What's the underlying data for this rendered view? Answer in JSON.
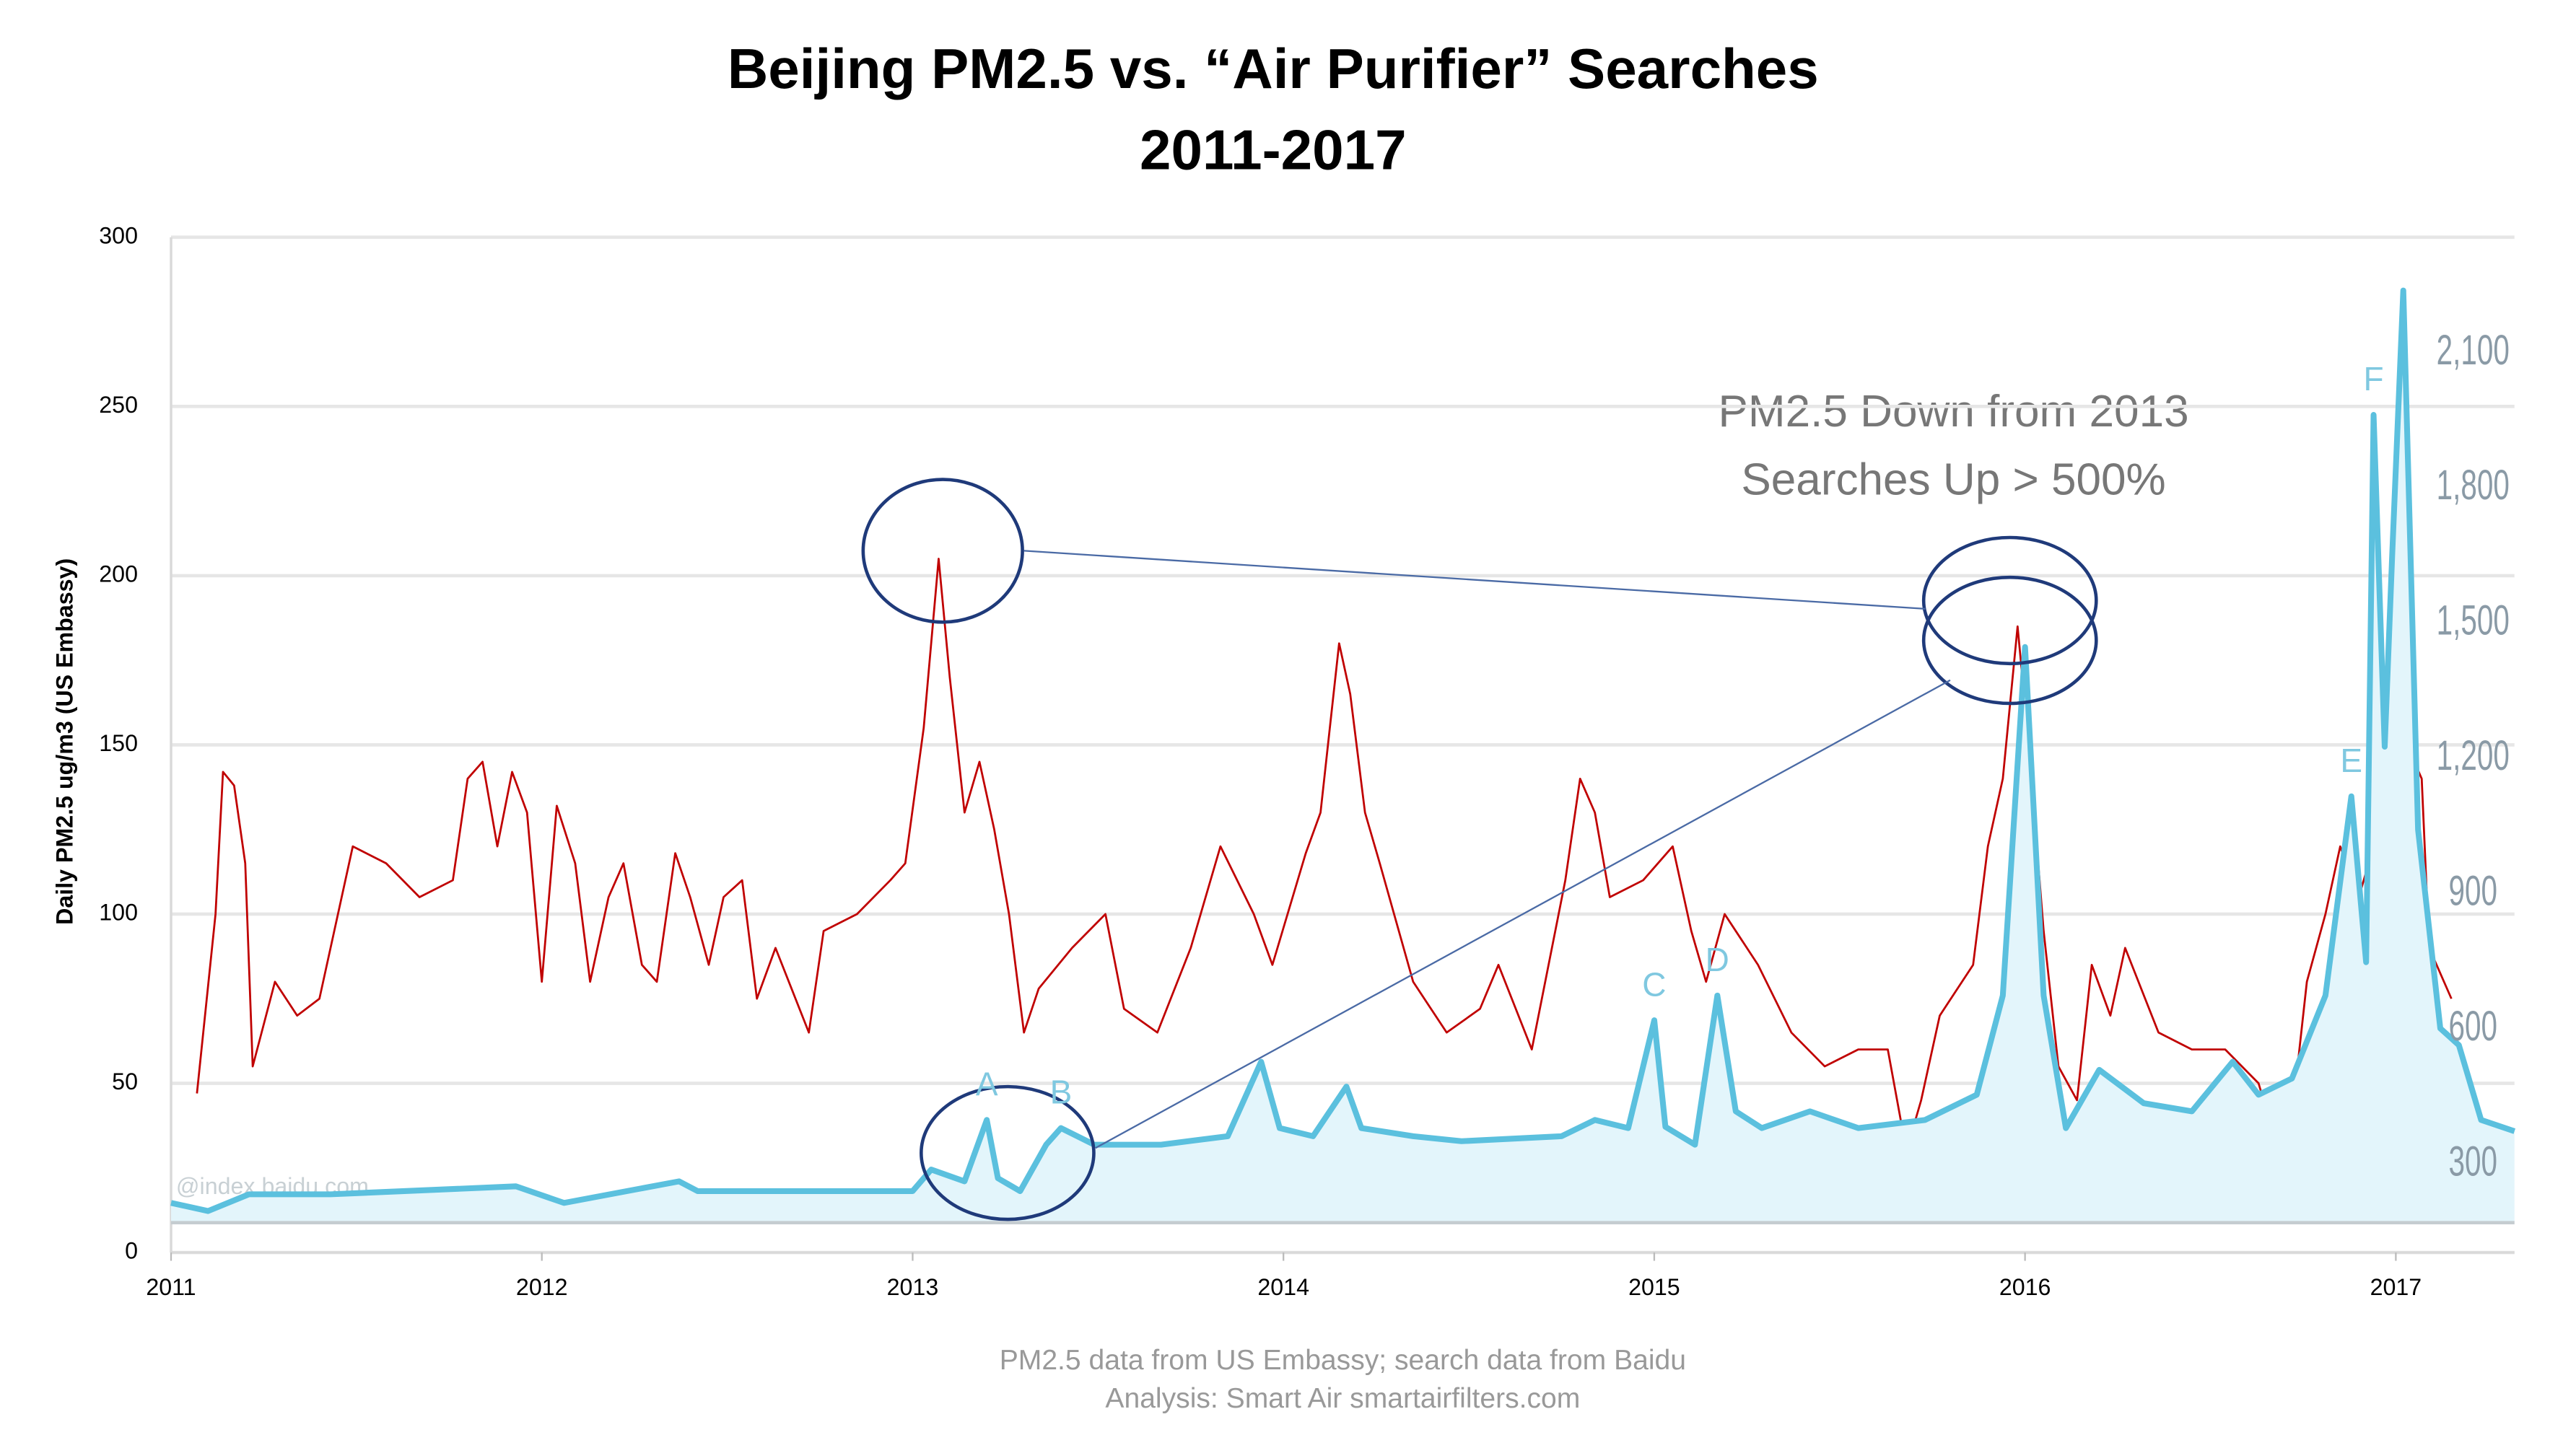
{
  "chart_data": {
    "type": "line",
    "title": "Beijing PM2.5 vs. “Air Purifier” Searches",
    "subtitle": "2011-2017",
    "ylabel": "Daily PM2.5 ug/m3 (US Embassy)",
    "annotation": [
      "PM2.5 Down from 2013",
      "Searches Up > 500%"
    ],
    "watermark": "@index.baidu.com",
    "footer": [
      "PM2.5 data from US Embassy; search data from Baidu",
      "Analysis: Smart Air smartairfilters.com"
    ],
    "xlim": [
      2011,
      2017.32
    ],
    "xticks": [
      2011,
      2012,
      2013,
      2014,
      2015,
      2016,
      2017
    ],
    "ylim": [
      0,
      300
    ],
    "yticks": [
      0,
      50,
      100,
      150,
      200,
      250,
      300
    ],
    "y2lim": [
      105,
      2357
    ],
    "y2ticks": [
      300,
      600,
      900,
      {
        "value": 1200,
        "label": "1,200"
      },
      {
        "value": 1500,
        "label": "1,500"
      },
      {
        "value": 1800,
        "label": "1,800"
      },
      {
        "value": 2100,
        "label": "2,100"
      }
    ],
    "grid": true,
    "series": [
      {
        "color": "#c00000",
        "axis": "y",
        "x": [
          2011.07,
          2011.12,
          2011.14,
          2011.17,
          2011.2,
          2011.22,
          2011.28,
          2011.34,
          2011.4,
          2011.49,
          2011.58,
          2011.67,
          2011.76,
          2011.8,
          2011.84,
          2011.88,
          2011.92,
          2011.96,
          2012.0,
          2012.04,
          2012.09,
          2012.13,
          2012.18,
          2012.22,
          2012.27,
          2012.31,
          2012.36,
          2012.4,
          2012.45,
          2012.49,
          2012.54,
          2012.58,
          2012.63,
          2012.72,
          2012.76,
          2012.85,
          2012.94,
          2012.98,
          2013.03,
          2013.07,
          2013.1,
          2013.14,
          2013.18,
          2013.22,
          2013.26,
          2013.3,
          2013.34,
          2013.43,
          2013.52,
          2013.57,
          2013.66,
          2013.75,
          2013.83,
          2013.92,
          2013.97,
          2014.06,
          2014.1,
          2014.15,
          2014.18,
          2014.22,
          2014.26,
          2014.35,
          2014.44,
          2014.53,
          2014.58,
          2014.67,
          2014.76,
          2014.8,
          2014.84,
          2014.88,
          2014.97,
          2015.05,
          2015.1,
          2015.14,
          2015.19,
          2015.28,
          2015.37,
          2015.46,
          2015.55,
          2015.63,
          2015.68,
          2015.72,
          2015.77,
          2015.86,
          2015.9,
          2015.94,
          2015.98,
          2016.01,
          2016.05,
          2016.09,
          2016.14,
          2016.18,
          2016.23,
          2016.27,
          2016.36,
          2016.45,
          2016.54,
          2016.63,
          2016.67,
          2016.72,
          2016.76,
          2016.81,
          2016.85,
          2016.9,
          2016.94,
          2016.98,
          2017.01,
          2017.03,
          2017.07,
          2017.09,
          2017.15
        ],
        "values": [
          47,
          100,
          142,
          138,
          115,
          55,
          80,
          70,
          75,
          120,
          115,
          105,
          110,
          140,
          145,
          120,
          142,
          130,
          80,
          132,
          115,
          80,
          105,
          115,
          85,
          80,
          118,
          105,
          85,
          105,
          110,
          75,
          90,
          65,
          95,
          100,
          110,
          115,
          155,
          205,
          170,
          130,
          145,
          125,
          100,
          65,
          78,
          90,
          100,
          72,
          65,
          90,
          120,
          100,
          85,
          118,
          130,
          180,
          165,
          130,
          115,
          80,
          65,
          72,
          85,
          60,
          110,
          140,
          130,
          105,
          110,
          120,
          95,
          80,
          100,
          85,
          65,
          55,
          60,
          60,
          30,
          45,
          70,
          85,
          120,
          140,
          185,
          150,
          95,
          55,
          45,
          85,
          70,
          90,
          65,
          60,
          60,
          50,
          35,
          40,
          80,
          100,
          120,
          105,
          120,
          150,
          185,
          150,
          140,
          90,
          75
        ]
      },
      {
        "color": "#5bc0de",
        "axis": "y2",
        "x": [
          2011.0,
          2011.1,
          2011.21,
          2011.43,
          2011.93,
          2012.06,
          2012.37,
          2012.42,
          2013.0,
          2013.05,
          2013.14,
          2013.2,
          2013.23,
          2013.29,
          2013.36,
          2013.4,
          2013.49,
          2013.67,
          2013.85,
          2013.94,
          2013.99,
          2014.08,
          2014.17,
          2014.21,
          2014.35,
          2014.48,
          2014.75,
          2014.84,
          2014.93,
          2015.0,
          2015.03,
          2015.11,
          2015.17,
          2015.22,
          2015.29,
          2015.42,
          2015.55,
          2015.73,
          2015.87,
          2015.94,
          2016.0,
          2016.05,
          2016.11,
          2016.2,
          2016.32,
          2016.45,
          2016.56,
          2016.63,
          2016.72,
          2016.81,
          2016.88,
          2016.92,
          2016.94,
          2016.97,
          2016.99,
          2017.02,
          2017.06,
          2017.12,
          2017.17,
          2017.23,
          2017.32
        ],
        "values": [
          215,
          197,
          234,
          234,
          252,
          215,
          263,
          241,
          241,
          289,
          263,
          399,
          270,
          241,
          344,
          381,
          344,
          344,
          363,
          528,
          381,
          363,
          473,
          381,
          363,
          352,
          363,
          399,
          381,
          620,
          384,
          344,
          675,
          418,
          381,
          418,
          381,
          399,
          455,
          675,
          1448,
          675,
          381,
          510,
          436,
          418,
          528,
          455,
          491,
          675,
          1117,
          749,
          1963,
          1227,
          1651,
          2239,
          1043,
          602,
          565,
          399,
          374
        ]
      }
    ],
    "point_labels": [
      {
        "label": "A",
        "x": 2013.2
      },
      {
        "label": "B",
        "x": 2013.4
      },
      {
        "label": "C",
        "x": 2015.0
      },
      {
        "label": "D",
        "x": 2015.17
      },
      {
        "label": "E",
        "x": 2016.88
      },
      {
        "label": "F",
        "x": 2016.94
      }
    ]
  }
}
